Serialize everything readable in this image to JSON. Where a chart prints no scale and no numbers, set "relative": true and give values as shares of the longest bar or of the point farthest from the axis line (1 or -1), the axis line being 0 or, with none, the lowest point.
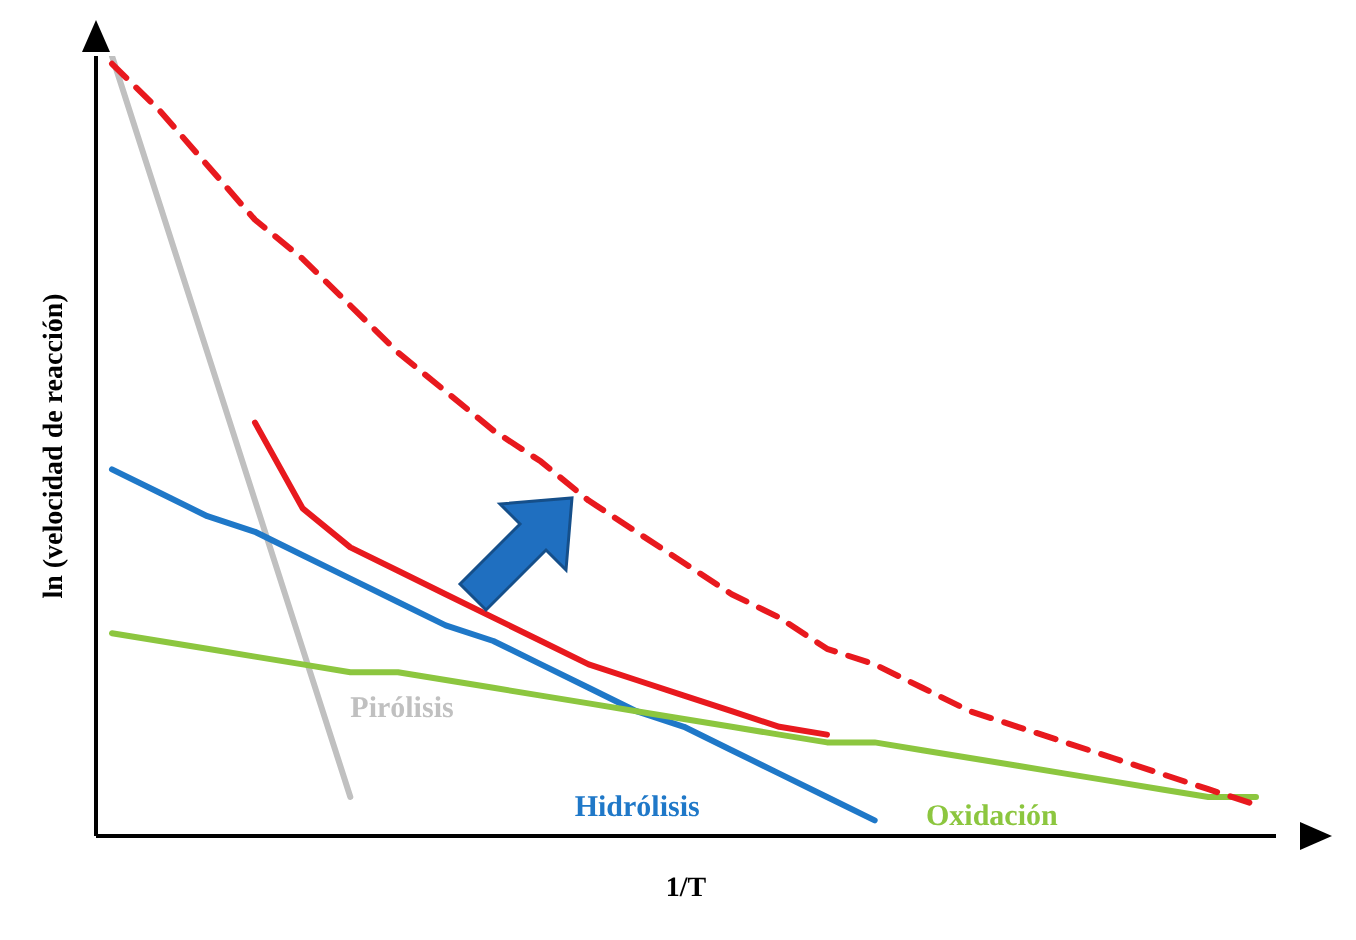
{
  "chart_data": {
    "type": "line",
    "relative": true,
    "xlabel": "1/T",
    "ylabel": "ln (velocidad de reacción)",
    "legend": false,
    "grid": false,
    "marker": "none",
    "categories": [
      null,
      null,
      null,
      null,
      null,
      null,
      null,
      null,
      null,
      null,
      null,
      null,
      null,
      null,
      null,
      null,
      null,
      null,
      null,
      null,
      null,
      null,
      null,
      null,
      null
    ],
    "series": [
      {
        "name": "Pirólisis",
        "color": "#c0c0c0",
        "values": [
          1.0,
          0.81,
          0.62,
          0.43,
          0.24,
          0.05,
          null,
          null,
          null,
          null,
          null,
          null,
          null,
          null,
          null,
          null,
          null,
          null,
          null,
          null,
          null,
          null,
          null,
          null,
          null
        ]
      },
      {
        "name": "Hidrólisis",
        "color": "#1f78c8",
        "values": [
          0.47,
          0.44,
          0.41,
          0.39,
          0.36,
          0.33,
          0.3,
          0.27,
          0.25,
          0.22,
          0.19,
          0.16,
          0.14,
          0.11,
          0.08,
          0.05,
          0.02,
          null,
          null,
          null,
          null,
          null,
          null,
          null,
          null
        ]
      },
      {
        "name": "Oxidación",
        "color": "#8cc63f",
        "values": [
          0.26,
          0.25,
          0.24,
          0.23,
          0.22,
          0.21,
          0.21,
          0.2,
          0.19,
          0.18,
          0.17,
          0.16,
          0.15,
          0.14,
          0.13,
          0.12,
          0.12,
          0.11,
          0.1,
          0.09,
          0.08,
          0.07,
          0.06,
          0.05,
          0.05
        ]
      },
      {
        "color": "#e8191e",
        "values": [
          null,
          null,
          null,
          0.53,
          0.42,
          0.37,
          0.34,
          0.31,
          0.28,
          0.25,
          0.22,
          0.2,
          0.18,
          0.16,
          0.14,
          0.13,
          null,
          null,
          null,
          null,
          null,
          null,
          null,
          null,
          null
        ]
      },
      {
        "color": "#e8191e",
        "line_style": "dashed",
        "values": [
          0.99,
          0.93,
          0.86,
          0.79,
          0.74,
          0.68,
          0.62,
          0.57,
          0.52,
          0.48,
          0.43,
          0.39,
          0.35,
          0.31,
          0.28,
          0.24,
          0.22,
          0.19,
          0.16,
          0.14,
          0.12,
          0.1,
          0.08,
          0.06,
          0.04
        ]
      }
    ]
  }
}
